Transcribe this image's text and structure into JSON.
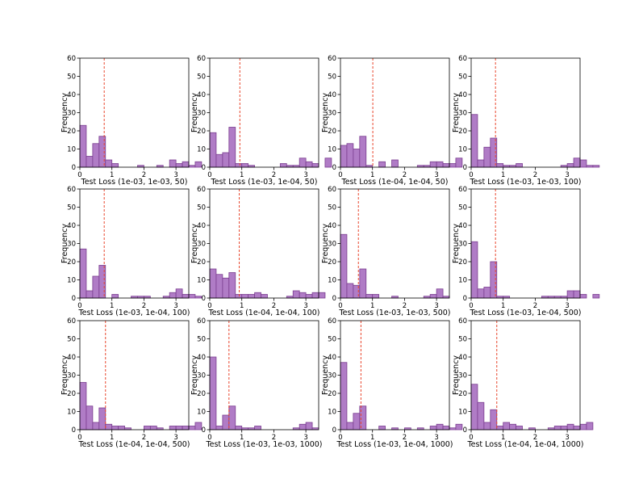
{
  "figure": {
    "ylabel": "Frequency",
    "xticks": [
      0,
      1,
      2,
      3
    ],
    "yticks": [
      0,
      10,
      20,
      30,
      40,
      50,
      60
    ],
    "ylim": [
      0,
      60
    ],
    "xlim": [
      0,
      3.4
    ],
    "bin_width": 0.2,
    "bar_color": "#b07cc6",
    "bar_edge": "#7a3d8f",
    "line_color": "#e8452c"
  },
  "chart_data": [
    {
      "type": "bar",
      "xlabel": "Test Loss (1e-03, 1e-03, 50)",
      "mean": 0.76,
      "values": [
        23,
        6,
        13,
        17,
        4,
        2,
        0,
        0,
        0,
        1,
        0,
        0,
        1,
        0,
        4,
        2,
        3,
        1,
        3,
        0
      ]
    },
    {
      "type": "bar",
      "xlabel": "Test Loss (1e-03, 1e-04, 50)",
      "mean": 0.94,
      "values": [
        19,
        7,
        8,
        22,
        2,
        2,
        1,
        0,
        0,
        0,
        0,
        2,
        1,
        1,
        5,
        3,
        2,
        0,
        5,
        0
      ]
    },
    {
      "type": "bar",
      "xlabel": "Test Loss (1e-04, 1e-04, 50)",
      "mean": 1.01,
      "values": [
        12,
        13,
        10,
        17,
        1,
        0,
        3,
        0,
        4,
        0,
        0,
        0,
        1,
        1,
        3,
        3,
        2,
        2,
        5,
        0
      ]
    },
    {
      "type": "bar",
      "xlabel": "Test Loss (1e-03, 1e-03, 100)",
      "mean": 0.76,
      "values": [
        29,
        4,
        11,
        16,
        2,
        1,
        1,
        2,
        0,
        0,
        0,
        0,
        0,
        0,
        1,
        2,
        5,
        4,
        1,
        1
      ]
    },
    {
      "type": "bar",
      "xlabel": "Test Loss (1e-03, 1e-04, 100)",
      "mean": 0.76,
      "values": [
        27,
        4,
        12,
        18,
        0,
        2,
        0,
        0,
        1,
        1,
        1,
        0,
        0,
        1,
        3,
        5,
        2,
        2,
        1,
        0
      ]
    },
    {
      "type": "bar",
      "xlabel": "Test Loss (1e-04, 1e-04, 100)",
      "mean": 0.92,
      "values": [
        16,
        13,
        11,
        14,
        2,
        2,
        2,
        3,
        2,
        0,
        0,
        0,
        1,
        4,
        3,
        2,
        3,
        3,
        0,
        0
      ]
    },
    {
      "type": "bar",
      "xlabel": "Test Loss (1e-03, 1e-03, 500)",
      "mean": 0.56,
      "values": [
        35,
        8,
        7,
        16,
        2,
        2,
        0,
        0,
        1,
        0,
        0,
        0,
        0,
        1,
        2,
        5,
        1,
        0,
        0,
        0
      ]
    },
    {
      "type": "bar",
      "xlabel": "Test Loss (1e-03, 1e-04, 500)",
      "mean": 0.76,
      "values": [
        31,
        5,
        6,
        20,
        1,
        1,
        0,
        0,
        0,
        0,
        0,
        1,
        1,
        1,
        1,
        4,
        4,
        2,
        0,
        2
      ]
    },
    {
      "type": "bar",
      "xlabel": "Test Loss (1e-04, 1e-04, 500)",
      "mean": 0.8,
      "values": [
        26,
        13,
        4,
        12,
        3,
        2,
        2,
        1,
        0,
        0,
        2,
        2,
        1,
        0,
        2,
        2,
        2,
        2,
        4,
        0
      ]
    },
    {
      "type": "bar",
      "xlabel": "Test Loss (1e-03, 1e-03, 1000)",
      "mean": 0.6,
      "values": [
        40,
        2,
        8,
        13,
        2,
        1,
        1,
        2,
        0,
        0,
        0,
        0,
        0,
        1,
        3,
        4,
        1,
        0,
        0,
        0
      ]
    },
    {
      "type": "bar",
      "xlabel": "Test Loss (1e-03, 1e-04, 1000)",
      "mean": 0.64,
      "values": [
        37,
        4,
        9,
        13,
        0,
        0,
        2,
        0,
        1,
        0,
        1,
        0,
        1,
        0,
        2,
        3,
        2,
        1,
        3,
        0
      ]
    },
    {
      "type": "bar",
      "xlabel": "Test Loss (1e-04, 1e-04, 1000)",
      "mean": 0.8,
      "values": [
        25,
        15,
        4,
        11,
        2,
        4,
        3,
        2,
        0,
        1,
        0,
        0,
        1,
        2,
        2,
        3,
        2,
        3,
        4,
        0
      ]
    }
  ]
}
